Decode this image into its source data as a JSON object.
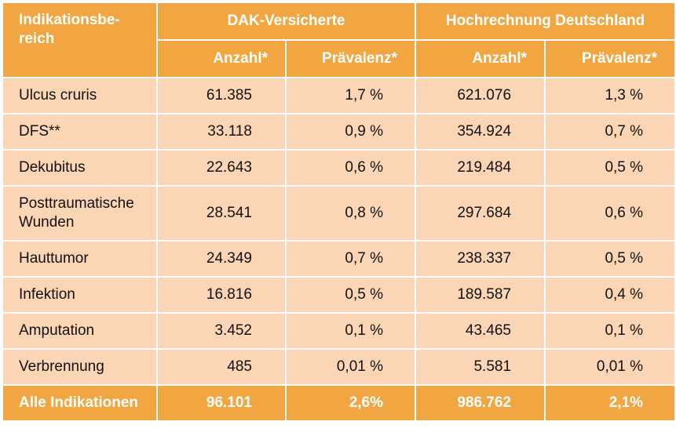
{
  "header": {
    "indication": "Indikationsbe-\nreich",
    "group1": "DAK-Versicherte",
    "group2": "Hochrechnung Deutschland",
    "count": "Anzahl*",
    "prevalence": "Prävalenz*"
  },
  "rows": [
    {
      "name": "Ulcus cruris",
      "dak_n": "61.385",
      "dak_p": "1,7 %",
      "de_n": "621.076",
      "de_p": "1,3 %"
    },
    {
      "name": "DFS**",
      "dak_n": "33.118",
      "dak_p": "0,9 %",
      "de_n": "354.924",
      "de_p": "0,7 %"
    },
    {
      "name": "Dekubitus",
      "dak_n": "22.643",
      "dak_p": "0,6 %",
      "de_n": "219.484",
      "de_p": "0,5 %"
    },
    {
      "name": "Posttraumatische Wunden",
      "dak_n": "28.541",
      "dak_p": "0,8 %",
      "de_n": "297.684",
      "de_p": "0,6 %"
    },
    {
      "name": "Hauttumor",
      "dak_n": "24.349",
      "dak_p": "0,7 %",
      "de_n": "238.337",
      "de_p": "0,5 %"
    },
    {
      "name": "Infektion",
      "dak_n": "16.816",
      "dak_p": "0,5 %",
      "de_n": "189.587",
      "de_p": "0,4 %"
    },
    {
      "name": "Amputation",
      "dak_n": "3.452",
      "dak_p": "0,1 %",
      "de_n": "43.465",
      "de_p": "0,1 %"
    },
    {
      "name": "Verbrennung",
      "dak_n": "485",
      "dak_p": "0,01 %",
      "de_n": "5.581",
      "de_p": "0,01 %"
    }
  ],
  "total": {
    "name": "Alle Indikationen",
    "dak_n": "96.101",
    "dak_p": "2,6%",
    "de_n": "986.762",
    "de_p": "2,1%"
  }
}
